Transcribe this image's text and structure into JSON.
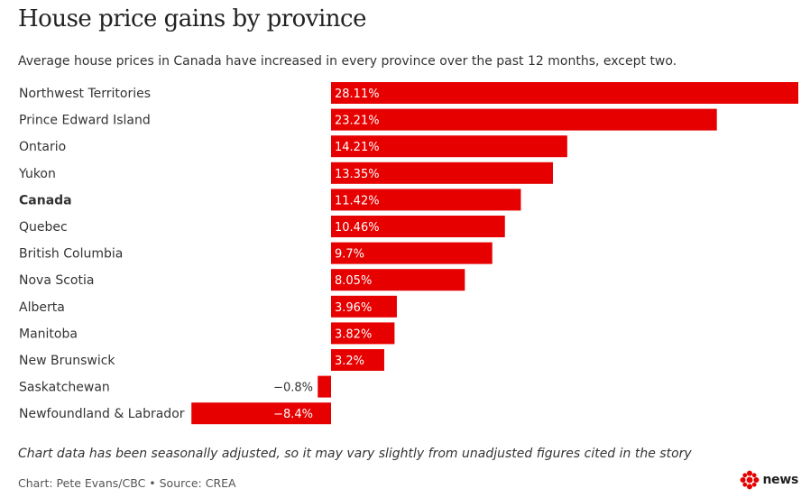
{
  "title": "House price gains by province",
  "subtitle": "Average house prices in Canada have increased in every province over the past 12 months, except two.",
  "chart_data": {
    "type": "bar",
    "orientation": "horizontal",
    "title": "House price gains by province",
    "subtitle": "Average house prices in Canada have increased in every province over the past 12 months, except two.",
    "categories": [
      "Northwest Territories",
      "Prince Edward Island",
      "Ontario",
      "Yukon",
      "Canada",
      "Quebec",
      "British Columbia",
      "Nova Scotia",
      "Alberta",
      "Manitoba",
      "New Brunswick",
      "Saskatchewan",
      "Newfoundland & Labrador"
    ],
    "values": [
      28.11,
      23.21,
      14.21,
      13.35,
      11.42,
      10.46,
      9.7,
      8.05,
      3.96,
      3.82,
      3.2,
      -0.8,
      -8.4
    ],
    "value_labels": [
      "28.11%",
      "23.21%",
      "14.21%",
      "13.35%",
      "11.42%",
      "10.46%",
      "9.7%",
      "8.05%",
      "3.96%",
      "3.82%",
      "3.2%",
      "−0.8%",
      "−8.4%"
    ],
    "bold_categories": [
      "Canada"
    ],
    "xlim": [
      -8.4,
      28.11
    ],
    "xlabel": "",
    "ylabel": "",
    "grid": false,
    "bar_color": "#e60000"
  },
  "footnote": "Chart data has been seasonally adjusted, so it may vary slightly from unadjusted figures cited in the story",
  "credit": "Chart: Pete Evans/CBC • Source: CREA",
  "logo": {
    "wordmark": "news",
    "icon": "cbc-gem-icon",
    "color": "#e60000"
  }
}
